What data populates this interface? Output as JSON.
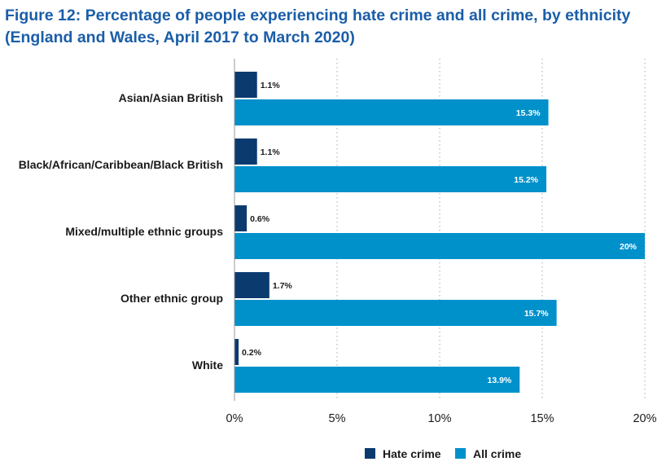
{
  "chart_data": {
    "type": "bar",
    "orientation": "horizontal",
    "title": "Figure 12: Percentage of people experiencing hate crime and all crime, by ethnicity",
    "subtitle": "(England and Wales, April 2017 to March 2020)",
    "categories": [
      "Asian/Asian British",
      "Black/African/Caribbean/Black British",
      "Mixed/multiple ethnic groups",
      "Other ethnic group",
      "White"
    ],
    "series": [
      {
        "name": "Hate crime",
        "color": "#0b3a6f",
        "values": [
          1.1,
          1.1,
          0.6,
          1.7,
          0.2
        ],
        "labels": [
          "1.1%",
          "1.1%",
          "0.6%",
          "1.7%",
          "0.2%"
        ]
      },
      {
        "name": "All crime",
        "color": "#0091cb",
        "values": [
          15.3,
          15.2,
          20,
          15.7,
          13.9
        ],
        "labels": [
          "15.3%",
          "15.2%",
          "20%",
          "15.7%",
          "13.9%"
        ]
      }
    ],
    "xlim": [
      0,
      20
    ],
    "xticks": [
      0,
      5,
      10,
      15,
      20
    ],
    "xtick_labels": [
      "0%",
      "5%",
      "10%",
      "15%",
      "20%"
    ],
    "grid": "vertical dotted",
    "legend_position": "bottom"
  }
}
